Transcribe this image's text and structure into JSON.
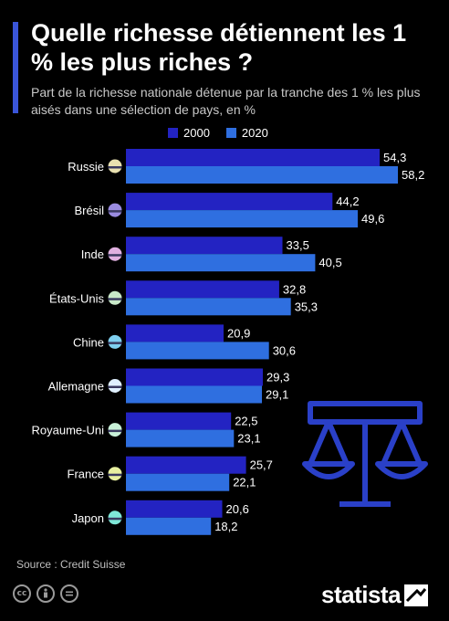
{
  "title": "Quelle richesse détiennent les 1 % les plus riches ?",
  "subtitle": "Part de la richesse nationale détenue par la tranche des 1 % les plus aisés dans une sélection de pays, en %",
  "source": "Source : Credit Suisse",
  "brand": "statista",
  "license_icons": [
    "creative-commons-icon",
    "attribution-icon",
    "no-derivatives-icon"
  ],
  "colors": {
    "background": "#000000",
    "s2000": "#2323c2",
    "s2020": "#2f6fe0",
    "accent": "#3a55d9",
    "scale_icon": "#2a40c8"
  },
  "chart_data": {
    "type": "bar",
    "orientation": "horizontal",
    "categories": [
      "Russie",
      "Brésil",
      "Inde",
      "États-Unis",
      "Chine",
      "Allemagne",
      "Royaume-Uni",
      "France",
      "Japon"
    ],
    "series": [
      {
        "name": "2000",
        "values": [
          54.3,
          44.2,
          33.5,
          32.8,
          20.9,
          29.3,
          22.5,
          25.7,
          20.6
        ],
        "labels": [
          "54,3",
          "44,2",
          "33,5",
          "32,8",
          "20,9",
          "29,3",
          "22,5",
          "25,7",
          "20,6"
        ]
      },
      {
        "name": "2020",
        "values": [
          58.2,
          49.6,
          40.5,
          35.3,
          30.6,
          29.1,
          23.1,
          22.1,
          18.2
        ],
        "labels": [
          "58,2",
          "49,6",
          "40,5",
          "35,3",
          "30,6",
          "29,1",
          "23,1",
          "22,1",
          "18,2"
        ]
      }
    ],
    "xlim": [
      0,
      58.2
    ],
    "grid": false,
    "legend": "top",
    "flag_icons": [
      "russia-flag-icon",
      "brazil-flag-icon",
      "india-flag-icon",
      "usa-flag-icon",
      "china-flag-icon",
      "germany-flag-icon",
      "uk-flag-icon",
      "france-flag-icon",
      "japan-flag-icon"
    ]
  }
}
